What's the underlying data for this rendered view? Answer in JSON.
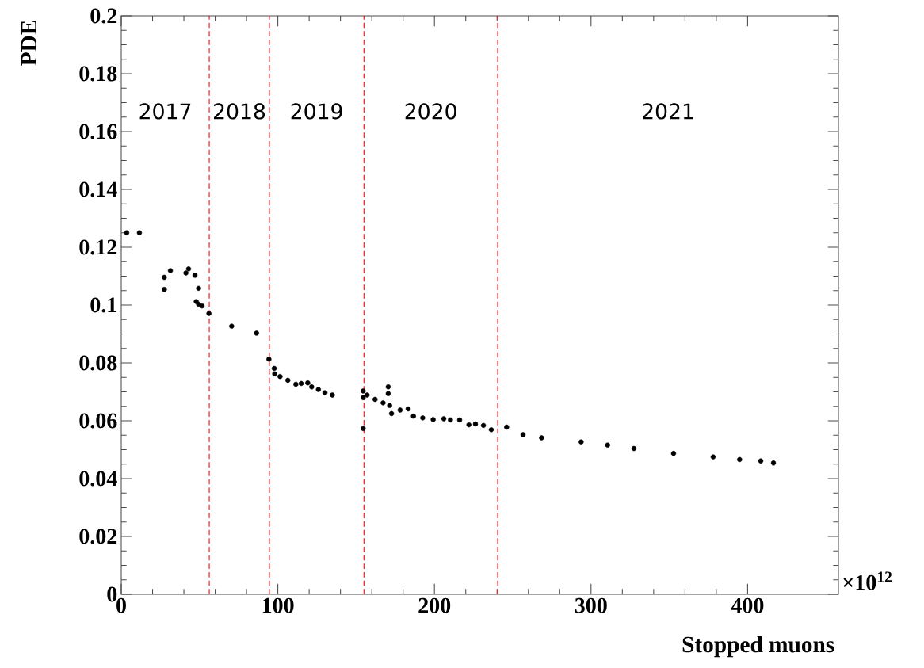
{
  "chart_data": {
    "type": "scatter",
    "xlabel": "Stopped muons",
    "ylabel": "PDE",
    "xlim": [
      0,
      458
    ],
    "ylim": [
      0,
      0.2
    ],
    "xticks": [
      0,
      100,
      200,
      300,
      400
    ],
    "yticks": [
      0,
      0.02,
      0.04,
      0.06,
      0.08,
      0.1,
      0.12,
      0.14,
      0.16,
      0.18,
      0.2
    ],
    "marker": "circle",
    "series": [
      {
        "color": "#000000",
        "x": [
          3.5,
          11.6,
          27.5,
          27.5,
          31.4,
          41.3,
          43.0,
          47.1,
          49.4,
          47.9,
          49.4,
          51.6,
          56.0,
          70.5,
          86.4,
          94.3,
          97.7,
          98.0,
          101.4,
          106.4,
          111.5,
          114.9,
          119.1,
          121.6,
          125.9,
          130.1,
          134.8,
          154.5,
          154.5,
          154.5,
          157.0,
          162.1,
          167.2,
          170.5,
          170.5,
          171.4,
          172.6,
          178.1,
          183.2,
          186.6,
          192.5,
          199.2,
          206.0,
          210.2,
          216.1,
          222.0,
          226.2,
          231.3,
          236.3,
          246.1,
          256.6,
          268.4,
          293.7,
          310.6,
          327.4,
          352.7,
          378.0,
          394.9,
          408.4,
          416.5
        ],
        "values": [
          0.125,
          0.125,
          0.1096,
          0.1054,
          0.1119,
          0.1111,
          0.1125,
          0.1103,
          0.1058,
          0.1012,
          0.1003,
          0.0997,
          0.0971,
          0.0927,
          0.0903,
          0.0813,
          0.0781,
          0.0762,
          0.0753,
          0.074,
          0.0726,
          0.0729,
          0.0731,
          0.0717,
          0.0708,
          0.0697,
          0.0689,
          0.0703,
          0.068,
          0.0573,
          0.0689,
          0.0674,
          0.0662,
          0.0717,
          0.0694,
          0.0653,
          0.0625,
          0.0637,
          0.0641,
          0.0616,
          0.061,
          0.0604,
          0.0607,
          0.0603,
          0.0603,
          0.0586,
          0.0589,
          0.0584,
          0.0569,
          0.0578,
          0.0552,
          0.0541,
          0.0527,
          0.0516,
          0.0504,
          0.0487,
          0.0475,
          0.0466,
          0.0461,
          0.0454
        ]
      }
    ],
    "ref_lines": [
      {
        "axis": "x",
        "value": 56.2,
        "color": "#ff0000",
        "line_style": "dashed"
      },
      {
        "axis": "x",
        "value": 94.6,
        "color": "#ff0000",
        "line_style": "dashed"
      },
      {
        "axis": "x",
        "value": 155,
        "color": "#ff0000",
        "line_style": "dashed"
      },
      {
        "axis": "x",
        "value": 240.4,
        "color": "#ff0000",
        "line_style": "dashed"
      }
    ],
    "annotations": [
      "2017",
      "2018",
      "2019",
      "2020",
      "2021",
      "×10$^{12}$"
    ]
  }
}
